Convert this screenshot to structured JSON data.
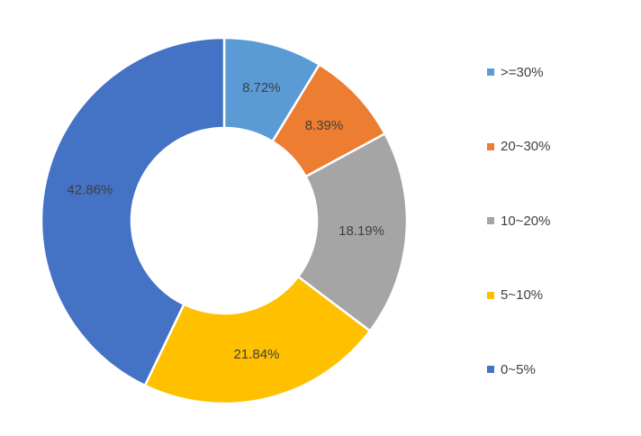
{
  "chart_data": {
    "type": "pie",
    "variant": "donut",
    "title": "",
    "legend_position": "right",
    "series": [
      {
        "slices": [
          {
            "label": ">=30%",
            "value": 8.72,
            "display": "8.72%",
            "color": "#5B9BD5"
          },
          {
            "label": "20~30%",
            "value": 8.39,
            "display": "8.39%",
            "color": "#ED7D31"
          },
          {
            "label": "10~20%",
            "value": 18.19,
            "display": "18.19%",
            "color": "#A5A5A5"
          },
          {
            "label": "5~10%",
            "value": 21.84,
            "display": "21.84%",
            "color": "#FFC000"
          },
          {
            "label": "0~5%",
            "value": 42.86,
            "display": "42.86%",
            "color": "#4472C4"
          }
        ]
      }
    ]
  }
}
